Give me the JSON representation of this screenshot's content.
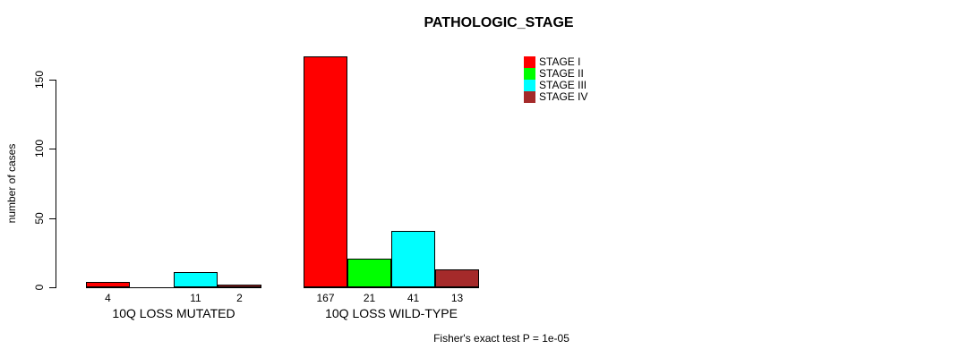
{
  "title": "PATHOLOGIC_STAGE",
  "chart_data": {
    "type": "bar",
    "title": "PATHOLOGIC_STAGE",
    "ylabel": "number of cases",
    "xlabel": "",
    "yticks": [
      0,
      50,
      100,
      150
    ],
    "ylim": [
      0,
      175
    ],
    "grid": false,
    "legend_position": "top-right",
    "categories": [
      "10Q LOSS MUTATED",
      "10Q LOSS WILD-TYPE"
    ],
    "series": [
      {
        "name": "STAGE I",
        "color": "#FF0000",
        "values": [
          4,
          167
        ]
      },
      {
        "name": "STAGE II",
        "color": "#00FF00",
        "values": [
          0,
          21
        ]
      },
      {
        "name": "STAGE III",
        "color": "#00FFFF",
        "values": [
          11,
          41
        ]
      },
      {
        "name": "STAGE IV",
        "color": "#A52A2A",
        "values": [
          2,
          13
        ]
      }
    ],
    "value_labels_shown": true,
    "zero_value_labels_hidden": true,
    "annotation": "Fisher's exact test P = 1e-05",
    "colors": {
      "axis": "#000000",
      "text": "#000000",
      "background": "#FFFFFF"
    }
  }
}
